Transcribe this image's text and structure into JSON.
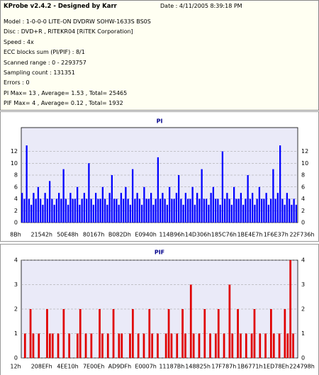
{
  "header": {
    "title": "KProbe v2.4.2 - Designed by Karr",
    "date": "Date : 4/11/2005 8:39:18 PM",
    "lines": [
      "Model : 1-0-0-0 LITE-ON DVDRW SOHW-1633S BS0S",
      "Disc : DVD+R , RITEKR04 [RiTEK Corporation]",
      "Speed : 4x",
      "ECC blocks sum (PI/PIF) : 8/1",
      "Scanned range : 0 - 2293757",
      "Sampling count : 131351",
      "Errors : 0",
      "PI Max= 13 , Average= 1.53 , Total= 25465",
      "PIF Max= 4 , Average= 0.12 , Total= 1932"
    ]
  },
  "chart_data": [
    {
      "type": "bar",
      "title": "PI",
      "color": "#0000ff",
      "ylim": [
        0,
        16
      ],
      "yticks": [
        0,
        2,
        4,
        6,
        8,
        10,
        12
      ],
      "grid": true,
      "xtick_labels": [
        "8Bh",
        "21542h",
        "50E48h",
        "80167h",
        "B082Dh",
        "E0940h",
        "114B96h",
        "14D306h",
        "185C76h",
        "1BE4E7h",
        "1F6E37h",
        "22F736h"
      ],
      "values": [
        5,
        4,
        13,
        4,
        3,
        5,
        4,
        6,
        4,
        3,
        5,
        4,
        7,
        4,
        3,
        4,
        5,
        4,
        9,
        4,
        3,
        5,
        4,
        4,
        6,
        3,
        4,
        5,
        4,
        10,
        4,
        3,
        5,
        4,
        4,
        6,
        4,
        3,
        5,
        8,
        4,
        4,
        3,
        5,
        4,
        6,
        4,
        3,
        9,
        4,
        5,
        4,
        3,
        6,
        4,
        4,
        5,
        3,
        4,
        11,
        4,
        5,
        4,
        3,
        6,
        4,
        4,
        5,
        8,
        4,
        3,
        5,
        4,
        4,
        6,
        3,
        5,
        4,
        9,
        4,
        4,
        3,
        5,
        6,
        4,
        4,
        3,
        12,
        4,
        5,
        4,
        3,
        6,
        4,
        4,
        5,
        3,
        4,
        8,
        4,
        5,
        3,
        4,
        6,
        4,
        4,
        5,
        3,
        4,
        9,
        4,
        5,
        13,
        4,
        3,
        5,
        4,
        3,
        4,
        3
      ]
    },
    {
      "type": "bar",
      "title": "PIF",
      "color": "#e00000",
      "ylim": [
        0,
        4
      ],
      "yticks": [
        0,
        1,
        2,
        3,
        4
      ],
      "grid": true,
      "xtick_labels": [
        "12h",
        "208EFh",
        "4EE10h",
        "7E00Eh",
        "AD9DFh",
        "E0007h",
        "11187Bh",
        "148825h",
        "17F787h",
        "1B6771h",
        "1ED78Eh",
        "224798h"
      ],
      "values": [
        0,
        1,
        0,
        2,
        1,
        0,
        1,
        0,
        0,
        2,
        1,
        1,
        0,
        1,
        0,
        2,
        0,
        1,
        0,
        0,
        1,
        2,
        0,
        1,
        0,
        1,
        0,
        0,
        2,
        1,
        0,
        1,
        0,
        2,
        0,
        1,
        1,
        0,
        0,
        1,
        2,
        0,
        1,
        0,
        1,
        0,
        2,
        1,
        0,
        1,
        0,
        0,
        1,
        2,
        1,
        0,
        1,
        0,
        2,
        1,
        0,
        3,
        1,
        0,
        1,
        0,
        2,
        0,
        1,
        0,
        1,
        2,
        0,
        1,
        0,
        3,
        1,
        0,
        2,
        1,
        0,
        1,
        0,
        1,
        2,
        0,
        1,
        0,
        1,
        0,
        2,
        1,
        0,
        1,
        0,
        2,
        1,
        4,
        1,
        0
      ]
    }
  ]
}
